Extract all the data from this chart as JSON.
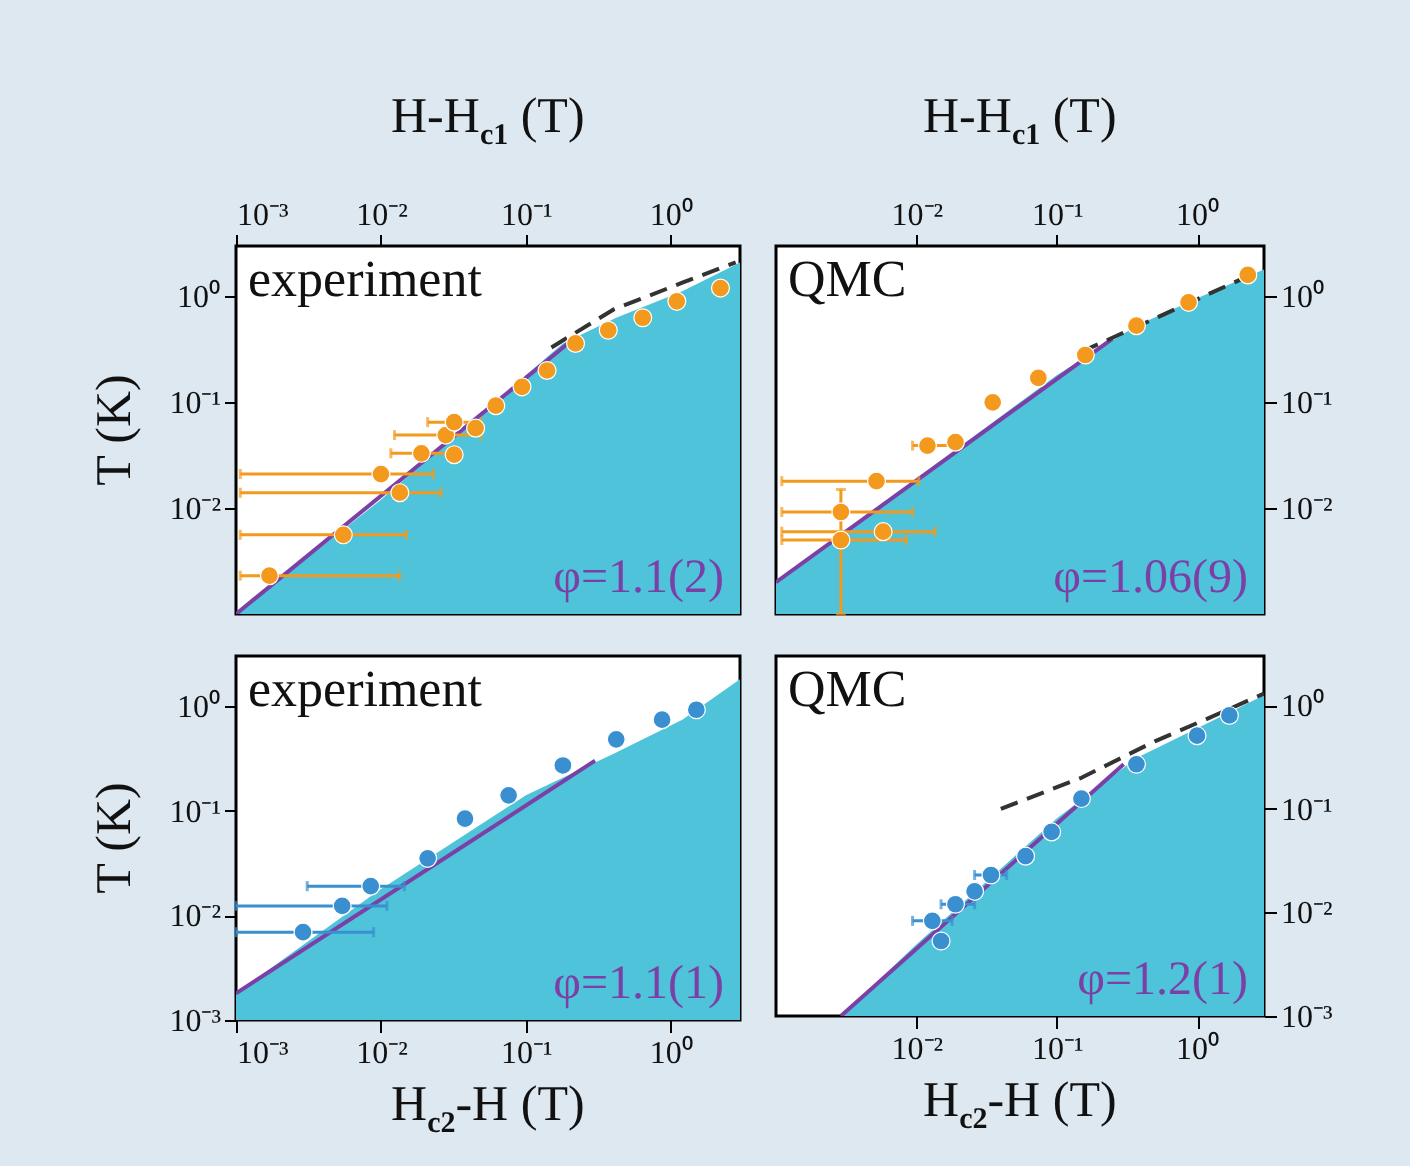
{
  "chart_data": [
    {
      "type": "scatter",
      "xlabel": "H-H$_{c1}$ (T)",
      "ylabel": "T (K)",
      "log": "xy",
      "xlim": [
        0.001,
        3
      ],
      "xticks": [
        {
          "value": 0.001,
          "label": "10⁻³"
        },
        {
          "value": 0.01,
          "label": "10⁻²"
        },
        {
          "value": 0.1,
          "label": "10⁻¹"
        },
        {
          "value": 1,
          "label": "10⁰"
        }
      ],
      "ylim": [
        0.001,
        3
      ],
      "yticks": [
        {
          "value": 0.01,
          "label": "10⁻²"
        },
        {
          "value": 0.1,
          "label": "10⁻¹"
        },
        {
          "value": 1,
          "label": "10⁰"
        }
      ],
      "annotations": [
        "experiment",
        "φ=1.1(2)"
      ],
      "series": [
        {
          "type": "area",
          "color": "#4ec3d9",
          "x": [
            0.001,
            0.01,
            0.1,
            0.18,
            0.42,
            1.2,
            3
          ],
          "values": [
            0.001,
            0.012,
            0.18,
            0.36,
            0.63,
            1.12,
            2.1
          ]
        },
        {
          "type": "line",
          "color": "#7b3fa6",
          "x": [
            0.001,
            0.2
          ],
          "values": [
            0.001,
            0.37
          ]
        },
        {
          "type": "line",
          "color": "#333333",
          "line_style": "dashed",
          "x": [
            0.15,
            0.4,
            1.2,
            2.8
          ],
          "values": [
            0.33,
            0.75,
            1.35,
            2.1
          ]
        },
        {
          "type": "scatter",
          "color": "#f39a1e",
          "marker": "circle",
          "x": [
            0.0017,
            0.0055,
            0.0135,
            0.01,
            0.019,
            0.032,
            0.028,
            0.032,
            0.045,
            0.062,
            0.094,
            0.14,
            0.22,
            0.37,
            0.64,
            1.1,
            2.2
          ],
          "values": [
            0.0023,
            0.0056,
            0.014,
            0.021,
            0.033,
            0.032,
            0.049,
            0.065,
            0.057,
            0.093,
            0.14,
            0.2,
            0.36,
            0.48,
            0.63,
            0.9,
            1.2
          ],
          "xerrors": [
            [
              0.00107,
              0.0134
            ],
            [
              0.00107,
              0.015
            ],
            [
              0.00107,
              0.026
            ],
            [
              0.00107,
              0.023
            ],
            [
              0.0117,
              0.032
            ],
            null,
            [
              0.0124,
              0.049
            ],
            [
              0.021,
              0.049
            ],
            null,
            null,
            null,
            null,
            null,
            null,
            null,
            null,
            null
          ]
        }
      ]
    },
    {
      "type": "scatter",
      "xlabel": "H-H$_{c1}$ (T)",
      "log": "xy",
      "xlim": [
        0.001,
        3
      ],
      "xticks": [
        {
          "value": 0.01,
          "label": "10⁻²"
        },
        {
          "value": 0.1,
          "label": "10⁻¹"
        },
        {
          "value": 1,
          "label": "10⁰"
        }
      ],
      "ylim": [
        0.001,
        3
      ],
      "yticks": [
        {
          "value": 0.01,
          "label": "10⁻²"
        },
        {
          "value": 0.1,
          "label": "10⁻¹"
        },
        {
          "value": 1,
          "label": "10⁰"
        }
      ],
      "annotations": [
        "QMC",
        "φ=1.06(9)"
      ],
      "series": [
        {
          "type": "area",
          "color": "#4ec3d9",
          "x": [
            0.001,
            0.1,
            0.37,
            1.07,
            3
          ],
          "values": [
            0.002,
            0.18,
            0.53,
            1.0,
            1.8
          ]
        },
        {
          "type": "line",
          "color": "#7b3fa6",
          "x": [
            0.001,
            0.25
          ],
          "values": [
            0.002,
            0.4
          ]
        },
        {
          "type": "line",
          "color": "#333333",
          "line_style": "dashed",
          "x": [
            0.15,
            0.5,
            1.2,
            2.8
          ],
          "values": [
            0.3,
            0.62,
            1.05,
            1.75
          ]
        },
        {
          "type": "scatter",
          "color": "#f39a1e",
          "marker": "circle",
          "x": [
            0.0029,
            0.0029,
            0.0058,
            0.0052,
            0.012,
            0.019,
            0.035,
            0.074,
            0.16,
            0.37,
            0.87,
            2.3
          ],
          "values": [
            0.005,
            0.0092,
            0.006,
            0.018,
            0.039,
            0.042,
            0.1,
            0.17,
            0.28,
            0.53,
            0.88,
            1.6
          ],
          "xerrors": [
            [
              0.0011,
              0.0085
            ],
            [
              0.0011,
              0.0094
            ],
            [
              0.0011,
              0.0136
            ],
            [
              0.0011,
              0.0104
            ],
            [
              0.0094,
              0.0188
            ],
            null,
            null,
            null,
            null,
            null,
            null,
            null
          ],
          "errors": [
            [
              0.001,
              0.015
            ],
            null,
            null,
            null,
            null,
            null,
            null,
            null,
            null,
            null,
            null,
            null
          ]
        }
      ]
    },
    {
      "type": "scatter",
      "xlabel": "H$_{c2}$-H (T)",
      "ylabel": "T (K)",
      "log": "xy",
      "xlim": [
        0.001,
        3
      ],
      "xticks": [
        {
          "value": 0.001,
          "label": "10⁻³"
        },
        {
          "value": 0.01,
          "label": "10⁻²"
        },
        {
          "value": 0.1,
          "label": "10⁻¹"
        },
        {
          "value": 1,
          "label": "10⁰"
        }
      ],
      "ylim": [
        0.001,
        3
      ],
      "yticks": [
        {
          "value": 0.001,
          "label": "10⁻³"
        },
        {
          "value": 0.01,
          "label": "10⁻²"
        },
        {
          "value": 0.1,
          "label": "10⁻¹"
        },
        {
          "value": 1,
          "label": "10⁰"
        }
      ],
      "annotations": [
        "experiment",
        "φ=1.1(1)"
      ],
      "series": [
        {
          "type": "area",
          "color": "#4ec3d9",
          "x": [
            0.001,
            0.0095,
            0.1,
            0.42,
            1.2,
            3
          ],
          "values": [
            0.0018,
            0.017,
            0.14,
            0.36,
            0.74,
            1.8
          ]
        },
        {
          "type": "line",
          "color": "#7b3fa6",
          "x": [
            0.001,
            0.3
          ],
          "values": [
            0.0018,
            0.3
          ]
        },
        {
          "type": "scatter",
          "color": "#3a8fd0",
          "marker": "circle",
          "x": [
            0.0029,
            0.0054,
            0.0085,
            0.021,
            0.038,
            0.076,
            0.18,
            0.42,
            0.87,
            1.5
          ],
          "values": [
            0.0069,
            0.0123,
            0.019,
            0.035,
            0.084,
            0.14,
            0.27,
            0.48,
            0.74,
            0.92
          ],
          "xerrors": [
            [
              0.001,
              0.0089
            ],
            [
              0.001,
              0.011
            ],
            [
              0.0031,
              0.0145
            ],
            null,
            null,
            null,
            null,
            null,
            null,
            null
          ]
        }
      ]
    },
    {
      "type": "scatter",
      "xlabel": "H$_{c2}$-H (T)",
      "log": "xy",
      "xlim": [
        0.001,
        3
      ],
      "xticks": [
        {
          "value": 0.01,
          "label": "10⁻²"
        },
        {
          "value": 0.1,
          "label": "10⁻¹"
        },
        {
          "value": 1,
          "label": "10⁰"
        }
      ],
      "ylim": [
        0.001,
        3
      ],
      "yticks": [
        {
          "value": 0.001,
          "label": "10⁻³"
        },
        {
          "value": 0.01,
          "label": "10⁻²"
        },
        {
          "value": 0.1,
          "label": "10⁻¹"
        },
        {
          "value": 1,
          "label": "10⁰"
        }
      ],
      "annotations": [
        "QMC",
        "φ=1.2(1)"
      ],
      "series": [
        {
          "type": "area",
          "color": "#4ec3d9",
          "x": [
            0.0029,
            0.01,
            0.1,
            0.37,
            1.1,
            3
          ],
          "values": [
            0.001,
            0.0049,
            0.081,
            0.31,
            0.64,
            1.25
          ]
        },
        {
          "type": "line",
          "color": "#7b3fa6",
          "x": [
            0.0029,
            0.3
          ],
          "values": [
            0.001,
            0.27
          ]
        },
        {
          "type": "line",
          "color": "#333333",
          "line_style": "dashed",
          "x": [
            0.04,
            0.15,
            0.5,
            1.2,
            3
          ],
          "values": [
            0.1,
            0.2,
            0.45,
            0.75,
            1.3
          ]
        },
        {
          "type": "scatter",
          "color": "#3a8fd0",
          "marker": "circle",
          "x": [
            0.013,
            0.015,
            0.019,
            0.026,
            0.034,
            0.06,
            0.092,
            0.15,
            0.37,
            1.0,
            1.7
          ],
          "values": [
            0.0083,
            0.0053,
            0.012,
            0.016,
            0.023,
            0.035,
            0.06,
            0.126,
            0.27,
            0.51,
            0.8
          ],
          "xerrors": [
            [
              0.0094,
              0.018
            ],
            null,
            [
              0.015,
              0.026
            ],
            null,
            [
              0.026,
              0.044
            ],
            null,
            null,
            null,
            null,
            null,
            null
          ]
        }
      ]
    }
  ]
}
